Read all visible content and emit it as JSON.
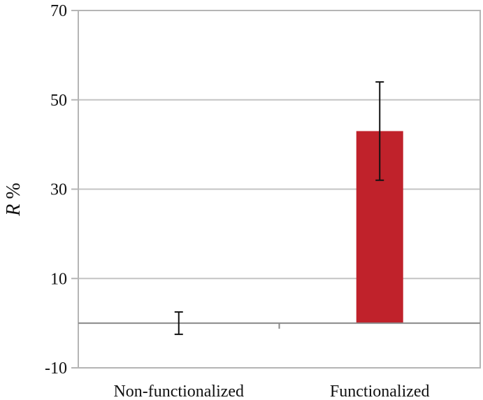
{
  "chart_data": {
    "type": "bar",
    "categories": [
      "Non-functionalized",
      "Functionalized"
    ],
    "values": [
      0,
      43
    ],
    "error": [
      2.5,
      11
    ],
    "ylabel_italic": "R",
    "ylabel_unit": " %",
    "ylim": [
      -10,
      70
    ],
    "yticks": [
      "70",
      "50",
      "30",
      "10",
      "-10"
    ],
    "grid": true,
    "bar_color": "#c0222b"
  }
}
